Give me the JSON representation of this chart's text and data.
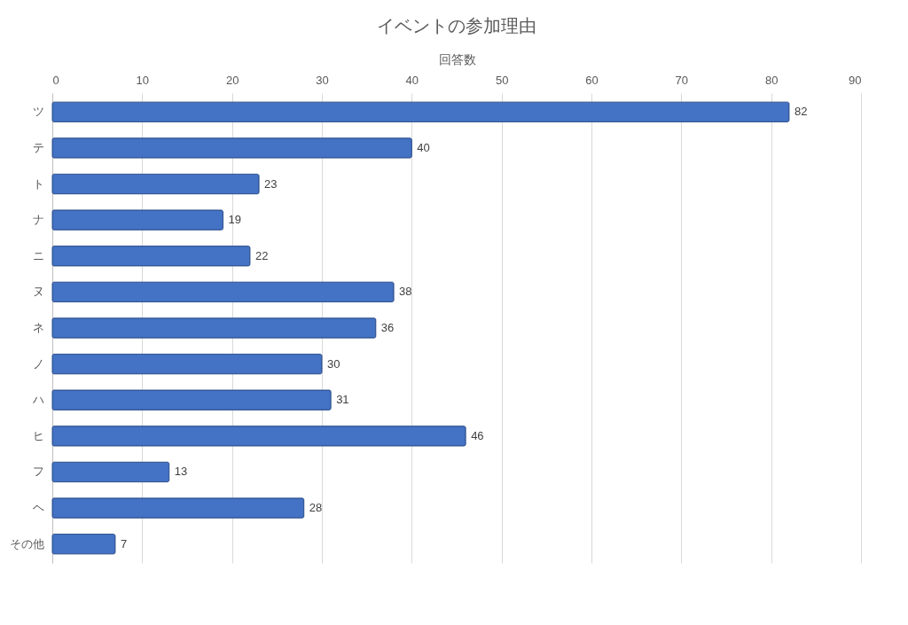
{
  "chart_data": {
    "type": "bar",
    "orientation": "horizontal",
    "title": "イベントの参加理由",
    "xlabel": "回答数",
    "categories": [
      "ツ",
      "テ",
      "ト",
      "ナ",
      "ニ",
      "ヌ",
      "ネ",
      "ノ",
      "ハ",
      "ヒ",
      "フ",
      "ヘ",
      "その他"
    ],
    "values": [
      82,
      40,
      23,
      19,
      22,
      38,
      36,
      30,
      31,
      46,
      13,
      28,
      7
    ],
    "color": "#4472c4",
    "xlim": [
      0,
      90
    ],
    "xticks": [
      0,
      10,
      20,
      30,
      40,
      50,
      60,
      70,
      80,
      90
    ],
    "grid": "x",
    "data_labels": true
  }
}
